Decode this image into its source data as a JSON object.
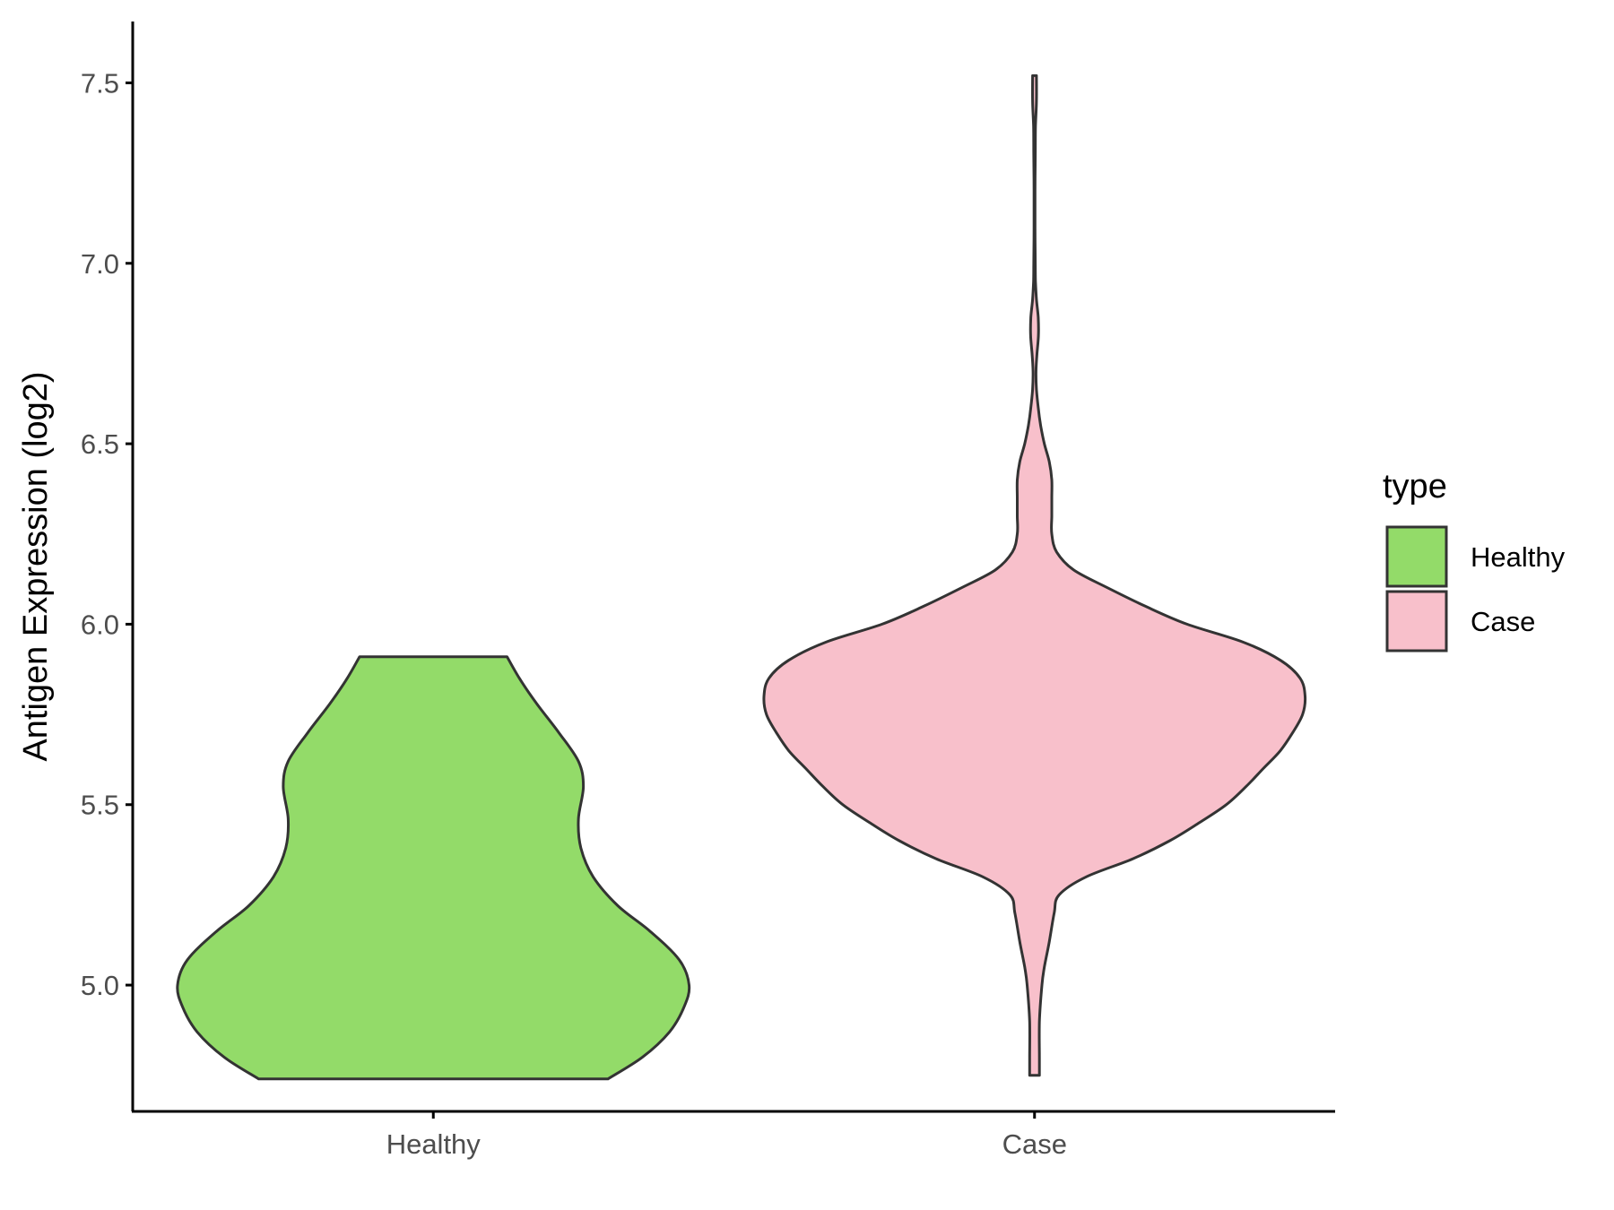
{
  "chart_data": {
    "type": "violin",
    "ylabel": "Antigen Expression (log2)",
    "xlabel": "",
    "ylim": [
      4.65,
      7.67
    ],
    "yticks": [
      "5.0",
      "5.5",
      "6.0",
      "6.5",
      "7.0",
      "7.5"
    ],
    "categories": [
      "Healthy",
      "Case"
    ],
    "legend": {
      "title": "type",
      "position": "right",
      "entries": [
        {
          "label": "Healthy",
          "color": "#93DB69"
        },
        {
          "label": "Case",
          "color": "#F8C0CB"
        }
      ]
    },
    "grid": false,
    "outline_color": "#333333",
    "series": [
      {
        "category": "Healthy",
        "color": "#93DB69",
        "y_min": 4.74,
        "y_max": 5.91,
        "density_profile": [
          [
            4.74,
            0.71
          ],
          [
            4.8,
            0.85
          ],
          [
            4.87,
            0.96
          ],
          [
            4.94,
            1.02
          ],
          [
            5.0,
            1.04
          ],
          [
            5.07,
            1.0
          ],
          [
            5.15,
            0.88
          ],
          [
            5.22,
            0.75
          ],
          [
            5.3,
            0.65
          ],
          [
            5.38,
            0.6
          ],
          [
            5.46,
            0.59
          ],
          [
            5.55,
            0.61
          ],
          [
            5.62,
            0.59
          ],
          [
            5.7,
            0.51
          ],
          [
            5.78,
            0.42
          ],
          [
            5.85,
            0.35
          ],
          [
            5.91,
            0.3
          ]
        ]
      },
      {
        "category": "Case",
        "color": "#F8C0CB",
        "y_min": 4.75,
        "y_max": 7.52,
        "density_profile": [
          [
            4.75,
            0.02
          ],
          [
            4.8,
            0.02
          ],
          [
            4.9,
            0.02
          ],
          [
            5.0,
            0.03
          ],
          [
            5.05,
            0.04
          ],
          [
            5.12,
            0.06
          ],
          [
            5.2,
            0.08
          ],
          [
            5.25,
            0.1
          ],
          [
            5.3,
            0.21
          ],
          [
            5.35,
            0.4
          ],
          [
            5.4,
            0.55
          ],
          [
            5.45,
            0.67
          ],
          [
            5.5,
            0.78
          ],
          [
            5.55,
            0.86
          ],
          [
            5.6,
            0.93
          ],
          [
            5.65,
            1.0
          ],
          [
            5.7,
            1.05
          ],
          [
            5.75,
            1.09
          ],
          [
            5.8,
            1.1
          ],
          [
            5.85,
            1.08
          ],
          [
            5.9,
            1.0
          ],
          [
            5.95,
            0.85
          ],
          [
            6.0,
            0.62
          ],
          [
            6.05,
            0.45
          ],
          [
            6.1,
            0.3
          ],
          [
            6.15,
            0.16
          ],
          [
            6.2,
            0.09
          ],
          [
            6.25,
            0.07
          ],
          [
            6.3,
            0.07
          ],
          [
            6.35,
            0.07
          ],
          [
            6.4,
            0.07
          ],
          [
            6.45,
            0.06
          ],
          [
            6.5,
            0.04
          ],
          [
            6.55,
            0.025
          ],
          [
            6.6,
            0.015
          ],
          [
            6.65,
            0.008
          ],
          [
            6.7,
            0.006
          ],
          [
            6.75,
            0.01
          ],
          [
            6.8,
            0.016
          ],
          [
            6.85,
            0.015
          ],
          [
            6.9,
            0.008
          ],
          [
            6.95,
            0.004
          ],
          [
            7.0,
            0.003
          ],
          [
            7.1,
            0.002
          ],
          [
            7.2,
            0.002
          ],
          [
            7.3,
            0.003
          ],
          [
            7.38,
            0.004
          ],
          [
            7.45,
            0.008
          ],
          [
            7.52,
            0.008
          ]
        ]
      }
    ]
  }
}
